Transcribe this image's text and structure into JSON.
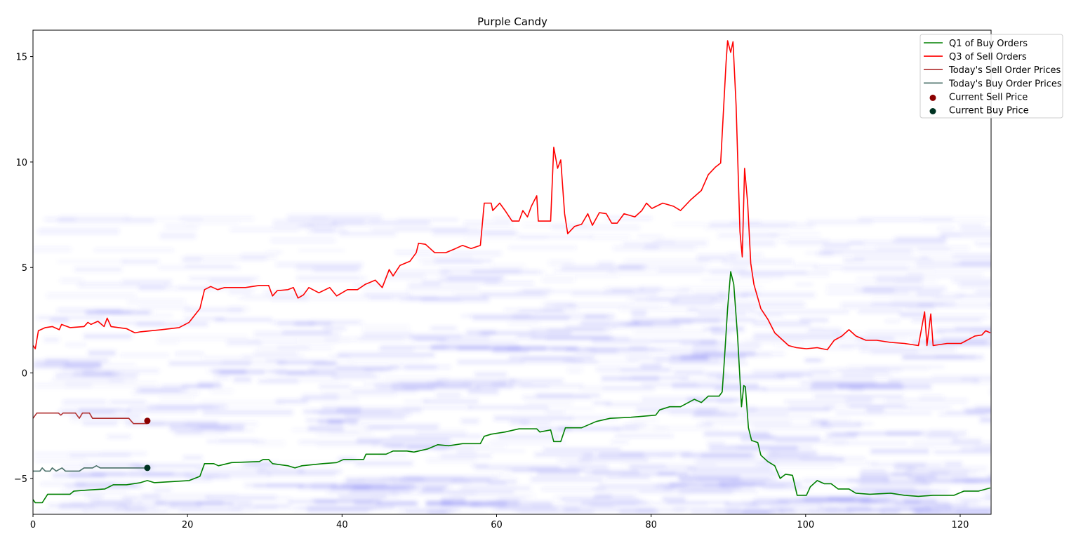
{
  "chart_data": {
    "type": "line",
    "title": "Purple Candy",
    "xlabel": "",
    "ylabel": "",
    "xlim": [
      0,
      124
    ],
    "ylim": [
      -6.7,
      16.25
    ],
    "xticks": [
      0,
      20,
      40,
      60,
      80,
      100,
      120
    ],
    "yticks": [
      -5,
      0,
      5,
      10,
      15
    ],
    "grid": false,
    "legend_position": "top-right",
    "series": [
      {
        "name": "Q1 of Buy Orders",
        "kind": "line",
        "color": "#008000",
        "points": [
          [
            0,
            -6.0
          ],
          [
            0.3,
            -6.15
          ],
          [
            1.2,
            -6.15
          ],
          [
            1.9,
            -5.75
          ],
          [
            4.8,
            -5.75
          ],
          [
            5.3,
            -5.6
          ],
          [
            7.1,
            -5.55
          ],
          [
            9.3,
            -5.5
          ],
          [
            10.4,
            -5.3
          ],
          [
            12.1,
            -5.3
          ],
          [
            13.9,
            -5.2
          ],
          [
            14.8,
            -5.1
          ],
          [
            15.7,
            -5.2
          ],
          [
            20.2,
            -5.1
          ],
          [
            21.6,
            -4.9
          ],
          [
            22.2,
            -4.3
          ],
          [
            23.4,
            -4.3
          ],
          [
            24,
            -4.4
          ],
          [
            25.7,
            -4.25
          ],
          [
            29.3,
            -4.2
          ],
          [
            29.8,
            -4.1
          ],
          [
            30.5,
            -4.1
          ],
          [
            31,
            -4.3
          ],
          [
            33,
            -4.4
          ],
          [
            33.9,
            -4.5
          ],
          [
            34.8,
            -4.4
          ],
          [
            37.5,
            -4.3
          ],
          [
            39.3,
            -4.25
          ],
          [
            40.2,
            -4.1
          ],
          [
            42.8,
            -4.1
          ],
          [
            43.1,
            -3.85
          ],
          [
            45.7,
            -3.85
          ],
          [
            46.6,
            -3.7
          ],
          [
            48.4,
            -3.7
          ],
          [
            49.3,
            -3.75
          ],
          [
            51.1,
            -3.6
          ],
          [
            52.4,
            -3.4
          ],
          [
            53.8,
            -3.45
          ],
          [
            55.6,
            -3.35
          ],
          [
            57.9,
            -3.35
          ],
          [
            58.4,
            -3.0
          ],
          [
            59.3,
            -2.9
          ],
          [
            61.1,
            -2.8
          ],
          [
            62.9,
            -2.65
          ],
          [
            65.2,
            -2.65
          ],
          [
            65.6,
            -2.8
          ],
          [
            67,
            -2.7
          ],
          [
            67.4,
            -3.25
          ],
          [
            68.3,
            -3.25
          ],
          [
            68.9,
            -2.6
          ],
          [
            71,
            -2.6
          ],
          [
            72.9,
            -2.3
          ],
          [
            74.7,
            -2.15
          ],
          [
            77.4,
            -2.1
          ],
          [
            80.6,
            -2.0
          ],
          [
            81.1,
            -1.75
          ],
          [
            82.4,
            -1.6
          ],
          [
            83.8,
            -1.6
          ],
          [
            85.6,
            -1.25
          ],
          [
            86.5,
            -1.4
          ],
          [
            87.4,
            -1.1
          ],
          [
            88.8,
            -1.1
          ],
          [
            89.2,
            -0.9
          ],
          [
            89.5,
            0.7
          ],
          [
            89.9,
            3.05
          ],
          [
            90.3,
            4.8
          ],
          [
            90.7,
            4.2
          ],
          [
            91.2,
            1.7
          ],
          [
            91.7,
            -1.6
          ],
          [
            92,
            -0.6
          ],
          [
            92.2,
            -0.65
          ],
          [
            92.6,
            -2.6
          ],
          [
            93,
            -3.2
          ],
          [
            93.8,
            -3.3
          ],
          [
            94.2,
            -3.9
          ],
          [
            95.1,
            -4.2
          ],
          [
            96,
            -4.4
          ],
          [
            96.7,
            -5.0
          ],
          [
            97.4,
            -4.8
          ],
          [
            98.3,
            -4.85
          ],
          [
            98.9,
            -5.8
          ],
          [
            100.1,
            -5.8
          ],
          [
            100.6,
            -5.4
          ],
          [
            101.5,
            -5.1
          ],
          [
            102.4,
            -5.25
          ],
          [
            103.3,
            -5.25
          ],
          [
            104.2,
            -5.5
          ],
          [
            105.6,
            -5.5
          ],
          [
            106.5,
            -5.7
          ],
          [
            108.3,
            -5.75
          ],
          [
            111,
            -5.7
          ],
          [
            112.8,
            -5.8
          ],
          [
            114.6,
            -5.85
          ],
          [
            116.5,
            -5.8
          ],
          [
            119.2,
            -5.8
          ],
          [
            120.5,
            -5.6
          ],
          [
            122.4,
            -5.6
          ],
          [
            123.9,
            -5.45
          ]
        ]
      },
      {
        "name": "Q3 of Sell Orders",
        "kind": "line",
        "color": "#ff0000",
        "points": [
          [
            0,
            1.3
          ],
          [
            0.3,
            1.15
          ],
          [
            0.7,
            2.0
          ],
          [
            1.6,
            2.15
          ],
          [
            2.5,
            2.2
          ],
          [
            3.4,
            2.05
          ],
          [
            3.7,
            2.3
          ],
          [
            4.8,
            2.15
          ],
          [
            6.6,
            2.2
          ],
          [
            7.1,
            2.4
          ],
          [
            7.5,
            2.3
          ],
          [
            8.4,
            2.45
          ],
          [
            9.2,
            2.2
          ],
          [
            9.6,
            2.6
          ],
          [
            10.1,
            2.2
          ],
          [
            12.1,
            2.1
          ],
          [
            13.2,
            1.9
          ],
          [
            13.9,
            1.95
          ],
          [
            16.6,
            2.05
          ],
          [
            18.9,
            2.15
          ],
          [
            20.2,
            2.4
          ],
          [
            21.6,
            3.05
          ],
          [
            22.2,
            3.95
          ],
          [
            23,
            4.1
          ],
          [
            23.9,
            3.95
          ],
          [
            24.8,
            4.05
          ],
          [
            27.5,
            4.05
          ],
          [
            29.3,
            4.15
          ],
          [
            30.5,
            4.15
          ],
          [
            31,
            3.65
          ],
          [
            31.6,
            3.9
          ],
          [
            33,
            3.95
          ],
          [
            33.7,
            4.05
          ],
          [
            34.3,
            3.55
          ],
          [
            35,
            3.7
          ],
          [
            35.7,
            4.05
          ],
          [
            37,
            3.8
          ],
          [
            38.4,
            4.05
          ],
          [
            39.3,
            3.65
          ],
          [
            40.7,
            3.95
          ],
          [
            42,
            3.95
          ],
          [
            43,
            4.2
          ],
          [
            44.3,
            4.4
          ],
          [
            45.2,
            4.05
          ],
          [
            46.1,
            4.9
          ],
          [
            46.6,
            4.6
          ],
          [
            47.5,
            5.1
          ],
          [
            48.8,
            5.3
          ],
          [
            49.6,
            5.7
          ],
          [
            49.9,
            6.15
          ],
          [
            50.8,
            6.1
          ],
          [
            52,
            5.7
          ],
          [
            53.4,
            5.7
          ],
          [
            54.7,
            5.9
          ],
          [
            55.6,
            6.05
          ],
          [
            56.7,
            5.9
          ],
          [
            57.9,
            6.05
          ],
          [
            58.4,
            8.05
          ],
          [
            59.3,
            8.05
          ],
          [
            59.5,
            7.7
          ],
          [
            60.4,
            8.05
          ],
          [
            61.1,
            7.7
          ],
          [
            62,
            7.2
          ],
          [
            62.9,
            7.2
          ],
          [
            63.4,
            7.7
          ],
          [
            64,
            7.4
          ],
          [
            64.5,
            7.9
          ],
          [
            65.2,
            8.4
          ],
          [
            65.4,
            7.2
          ],
          [
            67,
            7.2
          ],
          [
            67.4,
            10.7
          ],
          [
            67.9,
            9.7
          ],
          [
            68.3,
            10.1
          ],
          [
            68.8,
            7.55
          ],
          [
            69.2,
            6.6
          ],
          [
            70.1,
            6.95
          ],
          [
            71,
            7.05
          ],
          [
            71.8,
            7.55
          ],
          [
            72.4,
            7.0
          ],
          [
            73.3,
            7.6
          ],
          [
            74.2,
            7.55
          ],
          [
            74.9,
            7.1
          ],
          [
            75.6,
            7.1
          ],
          [
            76.5,
            7.55
          ],
          [
            77.9,
            7.4
          ],
          [
            78.8,
            7.7
          ],
          [
            79.4,
            8.05
          ],
          [
            80.1,
            7.8
          ],
          [
            81.5,
            8.05
          ],
          [
            82.9,
            7.9
          ],
          [
            83.8,
            7.7
          ],
          [
            85.1,
            8.2
          ],
          [
            86.5,
            8.65
          ],
          [
            87.4,
            9.4
          ],
          [
            88.3,
            9.75
          ],
          [
            89,
            9.95
          ],
          [
            89.7,
            14.7
          ],
          [
            89.9,
            15.75
          ],
          [
            90.3,
            15.2
          ],
          [
            90.6,
            15.7
          ],
          [
            91,
            12.7
          ],
          [
            91.5,
            6.7
          ],
          [
            91.8,
            5.5
          ],
          [
            92.1,
            9.7
          ],
          [
            92.5,
            8.05
          ],
          [
            92.9,
            5.2
          ],
          [
            93.3,
            4.2
          ],
          [
            94.2,
            3.05
          ],
          [
            95.1,
            2.55
          ],
          [
            96,
            1.9
          ],
          [
            96.9,
            1.6
          ],
          [
            97.8,
            1.3
          ],
          [
            98.8,
            1.2
          ],
          [
            100.1,
            1.15
          ],
          [
            101.5,
            1.2
          ],
          [
            102.8,
            1.1
          ],
          [
            103.7,
            1.55
          ],
          [
            104.7,
            1.75
          ],
          [
            105.6,
            2.05
          ],
          [
            106.5,
            1.75
          ],
          [
            107.8,
            1.55
          ],
          [
            109.2,
            1.55
          ],
          [
            111,
            1.45
          ],
          [
            112.8,
            1.4
          ],
          [
            114.6,
            1.3
          ],
          [
            115.4,
            2.9
          ],
          [
            115.7,
            1.3
          ],
          [
            116.2,
            2.8
          ],
          [
            116.5,
            1.3
          ],
          [
            118.3,
            1.4
          ],
          [
            120.1,
            1.4
          ],
          [
            121.9,
            1.75
          ],
          [
            122.8,
            1.8
          ],
          [
            123.3,
            2.0
          ],
          [
            123.9,
            1.9
          ]
        ]
      },
      {
        "name": "Today's Sell Order Prices",
        "kind": "line",
        "color": "#b03030",
        "points": [
          [
            0,
            -2.15
          ],
          [
            0.5,
            -1.9
          ],
          [
            3.3,
            -1.9
          ],
          [
            3.6,
            -2.0
          ],
          [
            3.9,
            -1.9
          ],
          [
            5.5,
            -1.9
          ],
          [
            6.0,
            -2.15
          ],
          [
            6.4,
            -1.9
          ],
          [
            7.3,
            -1.9
          ],
          [
            7.7,
            -2.15
          ],
          [
            12.4,
            -2.15
          ],
          [
            13.0,
            -2.4
          ],
          [
            14.8,
            -2.4
          ]
        ]
      },
      {
        "name": "Today's Buy Order Prices",
        "kind": "line",
        "color": "#4a7068",
        "points": [
          [
            0,
            -4.65
          ],
          [
            0.9,
            -4.65
          ],
          [
            1.2,
            -4.5
          ],
          [
            1.6,
            -4.65
          ],
          [
            2.2,
            -4.65
          ],
          [
            2.5,
            -4.5
          ],
          [
            3.0,
            -4.65
          ],
          [
            3.75,
            -4.5
          ],
          [
            4.2,
            -4.65
          ],
          [
            6.0,
            -4.65
          ],
          [
            6.6,
            -4.5
          ],
          [
            7.7,
            -4.5
          ],
          [
            8.2,
            -4.4
          ],
          [
            8.7,
            -4.5
          ],
          [
            14.8,
            -4.5
          ]
        ]
      },
      {
        "name": "Current Sell Price",
        "kind": "scatter",
        "color": "#8b0000",
        "points": [
          [
            14.8,
            -2.27
          ]
        ]
      },
      {
        "name": "Current Buy Price",
        "kind": "scatter",
        "color": "#003322",
        "points": [
          [
            14.8,
            -4.5
          ]
        ]
      }
    ]
  }
}
